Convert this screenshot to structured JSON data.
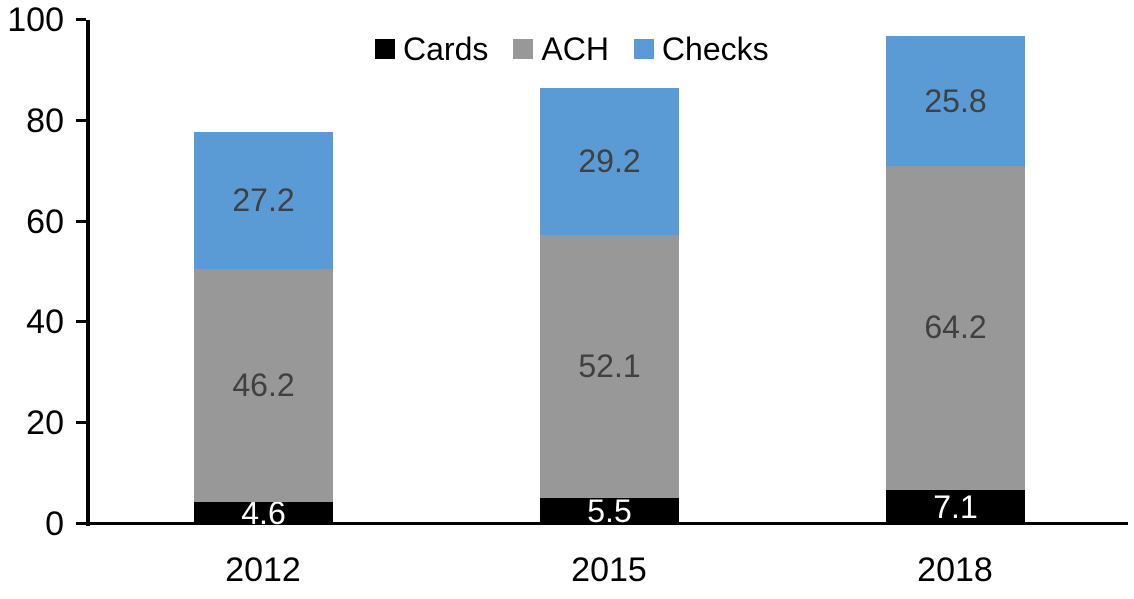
{
  "chart_data": {
    "type": "bar",
    "subtype": "stacked-vertical",
    "categories": [
      "2012",
      "2015",
      "2018"
    ],
    "series": [
      {
        "name": "Cards",
        "color": "#000000",
        "label_color": "#ffffff",
        "values": [
          4.6,
          5.5,
          7.1
        ]
      },
      {
        "name": "ACH",
        "color": "#989898",
        "label_color": "#404040",
        "values": [
          46.2,
          52.1,
          64.2
        ]
      },
      {
        "name": "Checks",
        "color": "#5B9BD5",
        "label_color": "#404040",
        "values": [
          27.2,
          29.2,
          25.8
        ]
      }
    ],
    "stack_totals": [
      78.0,
      86.8,
      97.1
    ],
    "ylim": [
      0,
      100
    ],
    "yticks": [
      "0",
      "20",
      "40",
      "60",
      "80",
      "100"
    ],
    "ytick_values": [
      0,
      20,
      40,
      60,
      80,
      100
    ],
    "legend_position": "top-center",
    "legend_entries": [
      "Cards",
      "ACH",
      "Checks"
    ],
    "grid": false,
    "data_labels_shown": true,
    "axis_color": "#000000",
    "background_color": "#ffffff"
  }
}
